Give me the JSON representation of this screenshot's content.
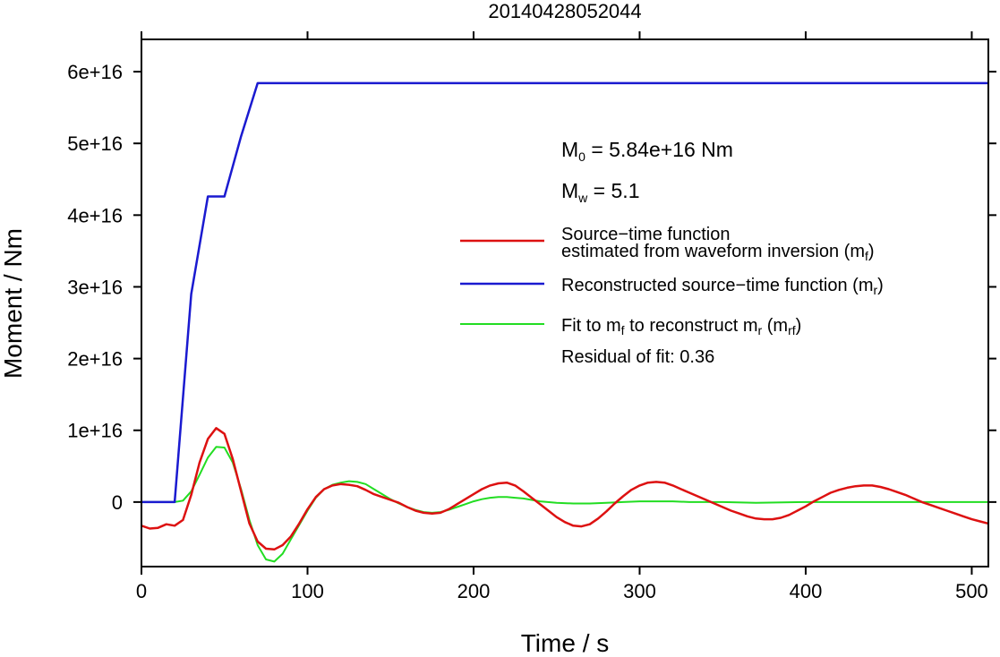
{
  "chart_data": {
    "type": "line",
    "title": "20140428052044",
    "xlabel": "Time / s",
    "ylabel": "Moment / Nm",
    "xlim": [
      0,
      510
    ],
    "ylim": [
      -9000000000000000.0,
      6.45e+16
    ],
    "x_ticks": [
      {
        "value": 0,
        "label": "0"
      },
      {
        "value": 100,
        "label": "100"
      },
      {
        "value": 200,
        "label": "200"
      },
      {
        "value": 300,
        "label": "300"
      },
      {
        "value": 400,
        "label": "400"
      },
      {
        "value": 500,
        "label": "500"
      }
    ],
    "y_ticks": [
      {
        "value": 0,
        "label": "0"
      },
      {
        "value": 1e+16,
        "label": "1e+16"
      },
      {
        "value": 2e+16,
        "label": "2e+16"
      },
      {
        "value": 3e+16,
        "label": "3e+16"
      },
      {
        "value": 4e+16,
        "label": "4e+16"
      },
      {
        "value": 5e+16,
        "label": "5e+16"
      },
      {
        "value": 6e+16,
        "label": "6e+16"
      }
    ],
    "grid": false,
    "legend_position": "right",
    "annotations": {
      "m0": {
        "main": "M",
        "sub": "0",
        "rest": " = 5.84e+16 Nm"
      },
      "mw": {
        "main": "M",
        "sub": "w",
        "rest": " = 5.1"
      },
      "residual": "Residual of fit: 0.36"
    },
    "series": [
      {
        "key": "mf",
        "color": "#dd1111",
        "legend": {
          "line1": "Source−time function",
          "line2_main": "estimated from waveform inversion (m",
          "line2_sub": "f",
          "line2_end": ")"
        },
        "points": [
          [
            0,
            -3300000000000000.0
          ],
          [
            5,
            -3700000000000000.0
          ],
          [
            10,
            -3600000000000000.0
          ],
          [
            15,
            -3100000000000000.0
          ],
          [
            20,
            -3300000000000000.0
          ],
          [
            25,
            -2500000000000000.0
          ],
          [
            30,
            1000000000000000.0
          ],
          [
            35,
            5500000000000000.0
          ],
          [
            40,
            8800000000000000.0
          ],
          [
            45,
            1.03e+16
          ],
          [
            50,
            9500000000000000.0
          ],
          [
            55,
            6000000000000000.0
          ],
          [
            60,
            1500000000000000.0
          ],
          [
            65,
            -3000000000000000.0
          ],
          [
            70,
            -5500000000000000.0
          ],
          [
            75,
            -6500000000000000.0
          ],
          [
            80,
            -6600000000000000.0
          ],
          [
            85,
            -6000000000000000.0
          ],
          [
            90,
            -4800000000000000.0
          ],
          [
            95,
            -3000000000000000.0
          ],
          [
            100,
            -1000000000000000.0
          ],
          [
            105,
            700000000000000.0
          ],
          [
            110,
            1800000000000000.0
          ],
          [
            115,
            2300000000000000.0
          ],
          [
            120,
            2500000000000000.0
          ],
          [
            125,
            2400000000000000.0
          ],
          [
            130,
            2200000000000000.0
          ],
          [
            135,
            1700000000000000.0
          ],
          [
            140,
            1100000000000000.0
          ],
          [
            145,
            700000000000000.0
          ],
          [
            150,
            300000000000000.0
          ],
          [
            155,
            -100000000000000.0
          ],
          [
            160,
            -700000000000000.0
          ],
          [
            165,
            -1200000000000000.0
          ],
          [
            170,
            -1500000000000000.0
          ],
          [
            175,
            -1600000000000000.0
          ],
          [
            180,
            -1500000000000000.0
          ],
          [
            185,
            -1000000000000000.0
          ],
          [
            190,
            -300000000000000.0
          ],
          [
            195,
            400000000000000.0
          ],
          [
            200,
            1100000000000000.0
          ],
          [
            205,
            1800000000000000.0
          ],
          [
            210,
            2300000000000000.0
          ],
          [
            215,
            2600000000000000.0
          ],
          [
            220,
            2700000000000000.0
          ],
          [
            225,
            2300000000000000.0
          ],
          [
            230,
            1500000000000000.0
          ],
          [
            235,
            600000000000000.0
          ],
          [
            240,
            -300000000000000.0
          ],
          [
            245,
            -1200000000000000.0
          ],
          [
            250,
            -2100000000000000.0
          ],
          [
            255,
            -2800000000000000.0
          ],
          [
            260,
            -3300000000000000.0
          ],
          [
            265,
            -3400000000000000.0
          ],
          [
            270,
            -3100000000000000.0
          ],
          [
            275,
            -2300000000000000.0
          ],
          [
            280,
            -1300000000000000.0
          ],
          [
            285,
            -200000000000000.0
          ],
          [
            290,
            800000000000000.0
          ],
          [
            295,
            1700000000000000.0
          ],
          [
            300,
            2300000000000000.0
          ],
          [
            305,
            2700000000000000.0
          ],
          [
            310,
            2800000000000000.0
          ],
          [
            315,
            2700000000000000.0
          ],
          [
            320,
            2300000000000000.0
          ],
          [
            325,
            1800000000000000.0
          ],
          [
            330,
            1300000000000000.0
          ],
          [
            335,
            800000000000000.0
          ],
          [
            340,
            300000000000000.0
          ],
          [
            345,
            -200000000000000.0
          ],
          [
            350,
            -700000000000000.0
          ],
          [
            355,
            -1200000000000000.0
          ],
          [
            360,
            -1600000000000000.0
          ],
          [
            365,
            -2000000000000000.0
          ],
          [
            370,
            -2300000000000000.0
          ],
          [
            375,
            -2400000000000000.0
          ],
          [
            380,
            -2400000000000000.0
          ],
          [
            385,
            -2200000000000000.0
          ],
          [
            390,
            -1800000000000000.0
          ],
          [
            395,
            -1200000000000000.0
          ],
          [
            400,
            -600000000000000.0
          ],
          [
            405,
            100000000000000.0
          ],
          [
            410,
            700000000000000.0
          ],
          [
            415,
            1300000000000000.0
          ],
          [
            420,
            1700000000000000.0
          ],
          [
            425,
            2000000000000000.0
          ],
          [
            430,
            2200000000000000.0
          ],
          [
            435,
            2300000000000000.0
          ],
          [
            440,
            2300000000000000.0
          ],
          [
            445,
            2100000000000000.0
          ],
          [
            450,
            1800000000000000.0
          ],
          [
            455,
            1400000000000000.0
          ],
          [
            460,
            1000000000000000.0
          ],
          [
            465,
            500000000000000.0
          ],
          [
            470,
            0
          ],
          [
            475,
            -400000000000000.0
          ],
          [
            480,
            -800000000000000.0
          ],
          [
            485,
            -1200000000000000.0
          ],
          [
            490,
            -1600000000000000.0
          ],
          [
            495,
            -2000000000000000.0
          ],
          [
            500,
            -2400000000000000.0
          ],
          [
            505,
            -2700000000000000.0
          ],
          [
            510,
            -3000000000000000.0
          ]
        ]
      },
      {
        "key": "mr",
        "color": "#1a1ad0",
        "legend": {
          "main": "Reconstructed source−time function (m",
          "sub": "r",
          "end": ")"
        },
        "points": [
          [
            0,
            0
          ],
          [
            20,
            0
          ],
          [
            30,
            2.9e+16
          ],
          [
            40,
            4.26e+16
          ],
          [
            50,
            4.26e+16
          ],
          [
            60,
            5.1e+16
          ],
          [
            70,
            5.84e+16
          ],
          [
            510,
            5.84e+16
          ]
        ]
      },
      {
        "key": "mrf",
        "color": "#22dd22",
        "legend": {
          "t1": "Fit to m",
          "s1": "f",
          "t2": " to reconstruct m",
          "s2": "r",
          "t3": " (m",
          "s3": "rf",
          "t4": ")"
        },
        "points": [
          [
            0,
            0
          ],
          [
            20,
            0
          ],
          [
            25,
            200000000000000.0
          ],
          [
            30,
            1500000000000000.0
          ],
          [
            35,
            3800000000000000.0
          ],
          [
            40,
            6200000000000000.0
          ],
          [
            45,
            7700000000000000.0
          ],
          [
            50,
            7600000000000000.0
          ],
          [
            55,
            5500000000000000.0
          ],
          [
            60,
            1800000000000000.0
          ],
          [
            65,
            -2500000000000000.0
          ],
          [
            70,
            -6000000000000000.0
          ],
          [
            75,
            -8000000000000000.0
          ],
          [
            80,
            -8300000000000000.0
          ],
          [
            85,
            -7200000000000000.0
          ],
          [
            90,
            -5200000000000000.0
          ],
          [
            95,
            -3200000000000000.0
          ],
          [
            100,
            -1200000000000000.0
          ],
          [
            105,
            600000000000000.0
          ],
          [
            110,
            1800000000000000.0
          ],
          [
            115,
            2400000000000000.0
          ],
          [
            120,
            2700000000000000.0
          ],
          [
            125,
            2900000000000000.0
          ],
          [
            130,
            2800000000000000.0
          ],
          [
            135,
            2500000000000000.0
          ],
          [
            140,
            1800000000000000.0
          ],
          [
            145,
            1100000000000000.0
          ],
          [
            150,
            400000000000000.0
          ],
          [
            155,
            -200000000000000.0
          ],
          [
            160,
            -700000000000000.0
          ],
          [
            165,
            -1100000000000000.0
          ],
          [
            170,
            -1400000000000000.0
          ],
          [
            175,
            -1500000000000000.0
          ],
          [
            180,
            -1400000000000000.0
          ],
          [
            185,
            -1100000000000000.0
          ],
          [
            190,
            -700000000000000.0
          ],
          [
            195,
            -300000000000000.0
          ],
          [
            200,
            100000000000000.0
          ],
          [
            205,
            400000000000000.0
          ],
          [
            210,
            600000000000000.0
          ],
          [
            215,
            700000000000000.0
          ],
          [
            220,
            700000000000000.0
          ],
          [
            225,
            600000000000000.0
          ],
          [
            230,
            500000000000000.0
          ],
          [
            235,
            300000000000000.0
          ],
          [
            240,
            100000000000000.0
          ],
          [
            250,
            -100000000000000.0
          ],
          [
            260,
            -200000000000000.0
          ],
          [
            270,
            -200000000000000.0
          ],
          [
            280,
            -100000000000000.0
          ],
          [
            290,
            0
          ],
          [
            300,
            100000000000000.0
          ],
          [
            310,
            100000000000000.0
          ],
          [
            320,
            100000000000000.0
          ],
          [
            330,
            0
          ],
          [
            350,
            0
          ],
          [
            370,
            -100000000000000.0
          ],
          [
            400,
            0
          ],
          [
            510,
            0
          ]
        ]
      }
    ]
  }
}
